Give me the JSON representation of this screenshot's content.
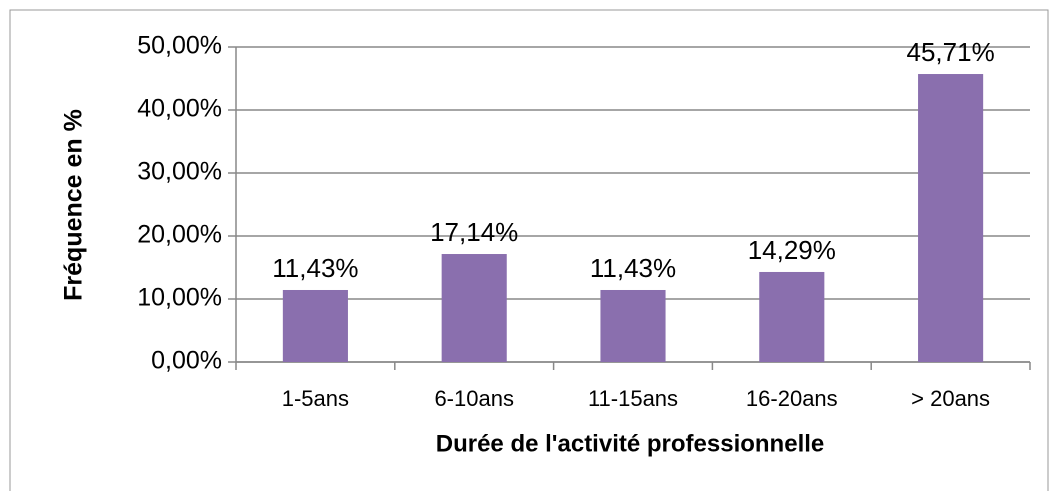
{
  "chart_data": {
    "type": "bar",
    "x_label": "Durée de l'activité professionnelle",
    "y_label": "Fréquence en %",
    "categories": [
      "1-5ans",
      "6-10ans",
      "11-15ans",
      "16-20ans",
      "> 20ans"
    ],
    "values": [
      11.43,
      17.14,
      11.43,
      14.29,
      45.71
    ],
    "value_labels": [
      "11,43%",
      "17,14%",
      "11,43%",
      "14,29%",
      "45,71%"
    ],
    "color": "#8a6fae",
    "ylim": [
      0,
      50
    ],
    "yticks": [
      {
        "value": 0,
        "label": "0,00%"
      },
      {
        "value": 10,
        "label": "10,00%"
      },
      {
        "value": 20,
        "label": "20,00%"
      },
      {
        "value": 30,
        "label": "30,00%"
      },
      {
        "value": 40,
        "label": "40,00%"
      },
      {
        "value": 50,
        "label": "50,00%"
      }
    ],
    "grid": true
  }
}
